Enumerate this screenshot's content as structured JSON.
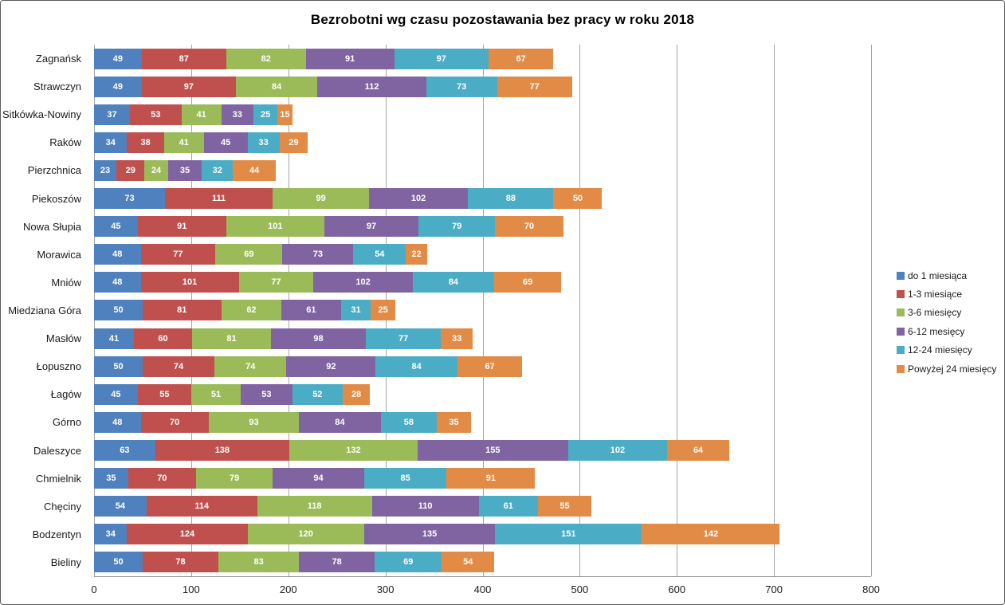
{
  "title": "Bezrobotni wg czasu pozostawania bez pracy w roku 2018",
  "chart_data": {
    "type": "bar",
    "orientation": "horizontal",
    "stacked": true,
    "title": "Bezrobotni wg czasu pozostawania bez pracy w roku 2018",
    "xlabel": "",
    "ylabel": "",
    "xlim": [
      0,
      800
    ],
    "x_ticks": [
      0,
      100,
      200,
      300,
      400,
      500,
      600,
      700,
      800
    ],
    "grid": true,
    "data_labels": true,
    "data_label_color": "#ffffff",
    "gridline_color": "#a6a6a6",
    "axis_line_color": "#898989",
    "legend_position": "right",
    "categories": [
      "Zagnańsk",
      "Strawczyn",
      "Sitkówka-Nowiny",
      "Raków",
      "Pierzchnica",
      "Piekoszów",
      "Nowa Słupia",
      "Morawica",
      "Mniów",
      "Miedziana Góra",
      "Masłów",
      "Łopuszno",
      "Łagów",
      "Górno",
      "Daleszyce",
      "Chmielnik",
      "Chęciny",
      "Bodzentyn",
      "Bieliny"
    ],
    "series": [
      {
        "name": "do 1 miesiąca",
        "color": "#4e81bd",
        "values": [
          49,
          49,
          37,
          34,
          23,
          73,
          45,
          48,
          48,
          50,
          41,
          50,
          45,
          48,
          63,
          35,
          54,
          34,
          50
        ]
      },
      {
        "name": "1-3 miesiące",
        "color": "#c0504d",
        "values": [
          87,
          97,
          53,
          38,
          29,
          111,
          91,
          77,
          101,
          81,
          60,
          74,
          55,
          70,
          138,
          70,
          114,
          124,
          78
        ]
      },
      {
        "name": "3-6 miesięcy",
        "color": "#9bbb59",
        "values": [
          82,
          84,
          41,
          41,
          24,
          99,
          101,
          69,
          77,
          62,
          81,
          74,
          51,
          93,
          132,
          79,
          118,
          120,
          83
        ]
      },
      {
        "name": "6-12 mesięcy",
        "color": "#8064a2",
        "values": [
          91,
          112,
          33,
          45,
          35,
          102,
          97,
          73,
          102,
          61,
          98,
          92,
          53,
          84,
          155,
          94,
          110,
          135,
          78
        ]
      },
      {
        "name": "12-24 miesięcy",
        "color": "#4bacc6",
        "values": [
          97,
          73,
          25,
          33,
          32,
          88,
          79,
          54,
          84,
          31,
          77,
          84,
          52,
          58,
          102,
          85,
          61,
          151,
          69
        ]
      },
      {
        "name": "Powyżej 24 miesięcy",
        "color": "#e28b46",
        "values": [
          67,
          77,
          15,
          29,
          44,
          50,
          70,
          22,
          69,
          25,
          33,
          67,
          28,
          35,
          64,
          91,
          55,
          142,
          54
        ]
      }
    ]
  }
}
